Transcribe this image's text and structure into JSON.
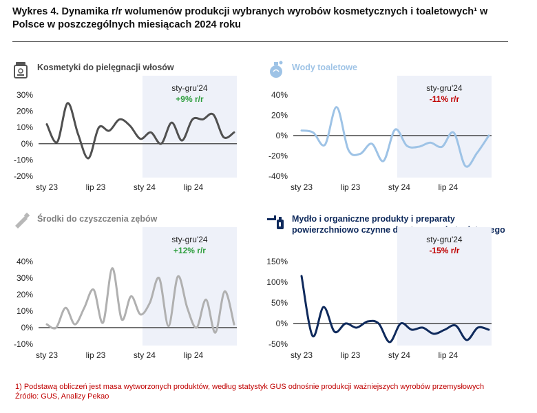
{
  "title": "Wykres 4. Dynamika r/r wolumenów produkcji wybranych wyrobów kosmetycznych i toaletowych¹ w Polsce w poszczególnych miesiącach 2024 roku",
  "footnote": "1) Podstawą obliczeń jest masa wytworzonych produktów, według statystyk GUS odnośnie produkcji ważniejszych wyrobów przemysłowych",
  "source": "Źródło: GUS, Analizy Pekao",
  "colors": {
    "positive": "#2e9e3e",
    "negative": "#c00000",
    "shade": "#eef1f9",
    "axis": "#222222"
  },
  "chart_data": [
    {
      "type": "line",
      "title": "Kosmetyki do pielęgnacji włosów",
      "title_color": "#444444",
      "icon": "cosmetics-jar-icon",
      "line_color": "#505050",
      "x_tick_labels": [
        "sty 23",
        "lip 23",
        "sty 24",
        "lip 24"
      ],
      "x_tick_index": [
        0,
        6,
        12,
        18
      ],
      "y_ticks": [
        30,
        20,
        10,
        0,
        -10,
        -20
      ],
      "y_tick_labels": [
        "30%",
        "20%",
        "10%",
        "0%",
        "-10%",
        "-20%"
      ],
      "ylim": [
        -20,
        30
      ],
      "shade_range": [
        12,
        23
      ],
      "annotation": {
        "label": "sty-gru'24",
        "value": "+9% r/r",
        "sign": "positive"
      },
      "series": [
        {
          "name": "r/r",
          "values": [
            12,
            1,
            25,
            6,
            -9,
            10,
            8,
            15,
            11,
            3,
            7,
            0,
            13,
            2,
            15,
            15,
            18,
            4,
            7
          ]
        }
      ]
    },
    {
      "type": "line",
      "title": "Wody toaletowe",
      "title_color": "#9ec3e6",
      "icon": "perfume-bottle-icon",
      "line_color": "#9ec3e6",
      "x_tick_labels": [
        "sty 23",
        "lip 23",
        "sty 24",
        "lip 24"
      ],
      "x_tick_index": [
        0,
        6,
        12,
        18
      ],
      "y_ticks": [
        40,
        20,
        0,
        -20,
        -40
      ],
      "y_tick_labels": [
        "40%",
        "20%",
        "0%",
        "-20%",
        "-40%"
      ],
      "ylim": [
        -40,
        40
      ],
      "shade_range": [
        12,
        23
      ],
      "annotation": {
        "label": "sty-gru'24",
        "value": "-11% r/r",
        "sign": "negative"
      },
      "series": [
        {
          "name": "r/r",
          "values": [
            5,
            3,
            -9,
            28,
            -14,
            -18,
            -8,
            -25,
            6,
            -10,
            -11,
            -7,
            -11,
            3,
            -30,
            -17,
            0
          ]
        }
      ]
    },
    {
      "type": "line",
      "title": "Środki do czyszczenia zębów",
      "title_color": "#808080",
      "icon": "toothpaste-tube-icon",
      "line_color": "#b0b0b0",
      "x_tick_labels": [
        "sty 23",
        "lip 23",
        "sty 24",
        "lip 24"
      ],
      "x_tick_index": [
        0,
        6,
        12,
        18
      ],
      "y_ticks": [
        40,
        30,
        20,
        10,
        0,
        -10
      ],
      "y_tick_labels": [
        "40%",
        "30%",
        "20%",
        "10%",
        "0%",
        "-10%"
      ],
      "ylim": [
        -10,
        40
      ],
      "shade_range": [
        12,
        23
      ],
      "annotation": {
        "label": "sty-gru'24",
        "value": "+12% r/r",
        "sign": "positive"
      },
      "series": [
        {
          "name": "r/r",
          "values": [
            2,
            0,
            12,
            2,
            12,
            23,
            3,
            36,
            5,
            19,
            8,
            15,
            30,
            1,
            31,
            12,
            0,
            17,
            -3,
            22,
            2
          ]
        }
      ]
    },
    {
      "type": "line",
      "title": "Mydło i organiczne produkty i preparaty powierzchniowo czynne do stosowania toaletowego",
      "title_color": "#0f2a5c",
      "icon": "soap-dispenser-icon",
      "line_color": "#0f2a5c",
      "x_tick_labels": [
        "sty 23",
        "lip 23",
        "sty 24",
        "lip 24"
      ],
      "x_tick_index": [
        0,
        6,
        12,
        18
      ],
      "y_ticks": [
        150,
        100,
        50,
        0,
        -50
      ],
      "y_tick_labels": [
        "150%",
        "100%",
        "50%",
        "0%",
        "-50%"
      ],
      "ylim": [
        -50,
        150
      ],
      "shade_range": [
        12,
        23
      ],
      "annotation": {
        "label": "sty-gru'24",
        "value": "-15% r/r",
        "sign": "negative"
      },
      "series": [
        {
          "name": "r/r",
          "values": [
            115,
            -30,
            40,
            -20,
            0,
            -10,
            5,
            0,
            -45,
            0,
            -15,
            -10,
            -25,
            -15,
            -5,
            -40,
            -10,
            -15
          ]
        }
      ]
    }
  ]
}
